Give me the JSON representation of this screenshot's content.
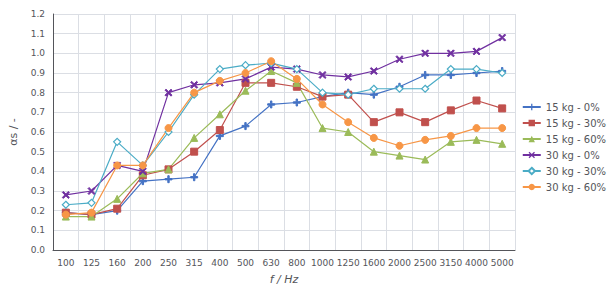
{
  "chart_data": {
    "type": "line",
    "categories": [
      100,
      125,
      160,
      200,
      250,
      315,
      400,
      500,
      630,
      800,
      1000,
      1250,
      1600,
      2000,
      2500,
      3150,
      4000,
      5000
    ],
    "series": [
      {
        "name": "15 kg - 0%",
        "color": "#4472C4",
        "marker": "plus",
        "values": [
          0.19,
          0.18,
          0.2,
          0.35,
          0.36,
          0.37,
          0.58,
          0.63,
          0.74,
          0.75,
          0.78,
          0.8,
          0.79,
          0.83,
          0.89,
          0.89,
          0.9,
          0.91
        ]
      },
      {
        "name": "15 kg - 30%",
        "color": "#C0504D",
        "marker": "square",
        "values": [
          0.19,
          0.18,
          0.21,
          0.38,
          0.41,
          0.5,
          0.61,
          0.85,
          0.85,
          0.83,
          0.78,
          0.79,
          0.65,
          0.7,
          0.65,
          0.71,
          0.76,
          0.72
        ]
      },
      {
        "name": "15 kg - 60%",
        "color": "#9BBB59",
        "marker": "triangle",
        "values": [
          0.17,
          0.17,
          0.26,
          0.39,
          0.41,
          0.57,
          0.69,
          0.81,
          0.91,
          0.85,
          0.62,
          0.6,
          0.5,
          0.48,
          0.46,
          0.55,
          0.56,
          0.54
        ]
      },
      {
        "name": "30 kg - 0%",
        "color": "#7030A0",
        "marker": "cross",
        "values": [
          0.28,
          0.3,
          0.43,
          0.4,
          0.8,
          0.84,
          0.85,
          0.87,
          0.93,
          0.92,
          0.89,
          0.88,
          0.91,
          0.97,
          1.0,
          1.0,
          1.01,
          1.08
        ]
      },
      {
        "name": "30 kg - 30%",
        "color": "#4BACC6",
        "marker": "diamond",
        "values": [
          0.23,
          0.24,
          0.55,
          0.43,
          0.6,
          0.79,
          0.92,
          0.94,
          0.95,
          0.92,
          0.8,
          0.79,
          0.82,
          0.82,
          0.82,
          0.92,
          0.92,
          0.9
        ]
      },
      {
        "name": "30 kg - 60%",
        "color": "#F79646",
        "marker": "circle",
        "values": [
          0.18,
          0.19,
          0.43,
          0.43,
          0.62,
          0.8,
          0.86,
          0.9,
          0.96,
          0.87,
          0.74,
          0.65,
          0.57,
          0.53,
          0.56,
          0.58,
          0.62,
          0.62
        ]
      }
    ],
    "xlabel": "f / Hz",
    "ylabel": "αs / -",
    "ylim": [
      0.0,
      1.2
    ],
    "yticks": [
      {
        "value": 0,
        "label": "0.0"
      },
      0.1,
      0.2,
      0.3,
      0.4,
      0.5,
      0.6,
      0.7,
      0.8,
      0.9,
      {
        "value": 1,
        "label": "1.0"
      },
      1.1,
      1.2
    ],
    "grid": true,
    "legend": "right"
  }
}
